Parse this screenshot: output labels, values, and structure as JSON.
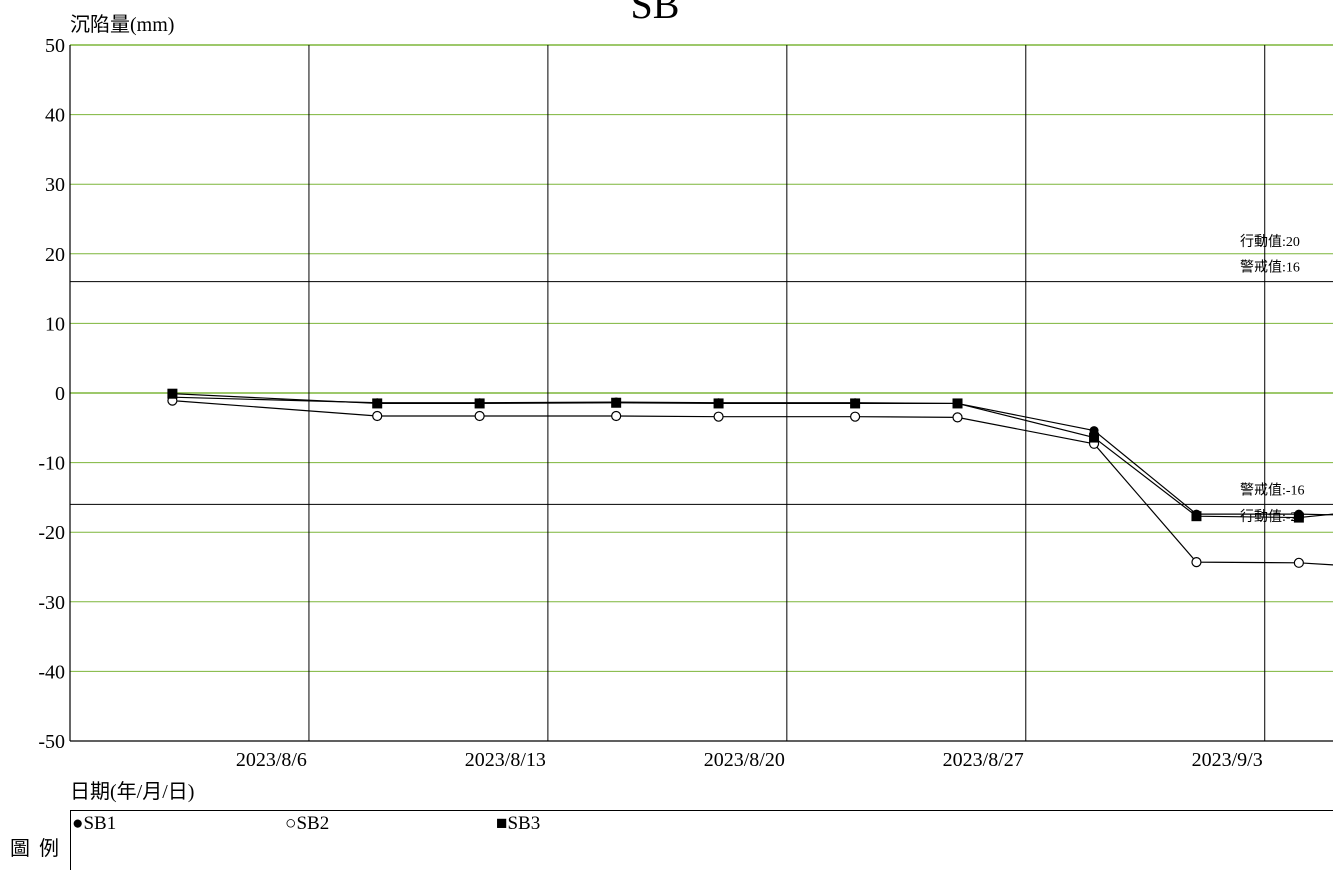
{
  "chart_data": {
    "type": "line",
    "title": "SB",
    "ylabel": "沉陷量(mm)",
    "xlabel": "日期(年/月/日)",
    "ylim": [
      -50,
      50
    ],
    "yticks": [
      "50",
      "40",
      "30",
      "20",
      "10",
      "0",
      "-10",
      "-20",
      "-30",
      "-40",
      "-50"
    ],
    "xlim": [
      "2023/7/30",
      "2023/9/5"
    ],
    "xticks": [
      "2023/8/6",
      "2023/8/13",
      "2023/8/20",
      "2023/8/27",
      "2023/9/3"
    ],
    "grid": true,
    "thresholds": [
      {
        "label": "行動值:20",
        "value": 20
      },
      {
        "label": "警戒值:16",
        "value": 16
      },
      {
        "label": "警戒值:-16",
        "value": -16
      },
      {
        "label": "行動值:-20",
        "value": -20
      }
    ],
    "series": [
      {
        "name": "SB1",
        "marker": "filled-circle",
        "x": [
          "2023/8/2",
          "2023/8/8",
          "2023/8/11",
          "2023/8/15",
          "2023/8/18",
          "2023/8/22",
          "2023/8/25",
          "2023/8/29",
          "2023/9/1",
          "2023/9/4",
          "2023/9/5"
        ],
        "y": [
          -0.6,
          -1.4,
          -1.4,
          -1.3,
          -1.4,
          -1.4,
          -1.5,
          -5.4,
          -17.4,
          -17.4,
          -17.5
        ]
      },
      {
        "name": "SB2",
        "marker": "open-circle",
        "x": [
          "2023/8/2",
          "2023/8/8",
          "2023/8/11",
          "2023/8/15",
          "2023/8/18",
          "2023/8/22",
          "2023/8/25",
          "2023/8/29",
          "2023/9/1",
          "2023/9/4",
          "2023/9/5"
        ],
        "y": [
          -1.1,
          -3.3,
          -3.3,
          -3.3,
          -3.4,
          -3.4,
          -3.5,
          -7.3,
          -24.3,
          -24.4,
          -24.7
        ]
      },
      {
        "name": "SB3",
        "marker": "filled-square",
        "x": [
          "2023/8/2",
          "2023/8/8",
          "2023/8/11",
          "2023/8/15",
          "2023/8/18",
          "2023/8/22",
          "2023/8/25",
          "2023/8/29",
          "2023/9/1",
          "2023/9/4",
          "2023/9/5"
        ],
        "y": [
          -0.1,
          -1.5,
          -1.5,
          -1.4,
          -1.5,
          -1.5,
          -1.5,
          -6.4,
          -17.7,
          -17.9,
          -17.4
        ]
      }
    ],
    "colors": {
      "threshold": "#000000",
      "hgrid": "#7db53a",
      "vgrid": "#000000",
      "line": "#000000"
    }
  },
  "legend": {
    "title": "圖 例",
    "items": [
      {
        "symbol": "●",
        "label": "SB1"
      },
      {
        "symbol": "○",
        "label": "SB2"
      },
      {
        "symbol": "■",
        "label": "SB3"
      }
    ]
  }
}
